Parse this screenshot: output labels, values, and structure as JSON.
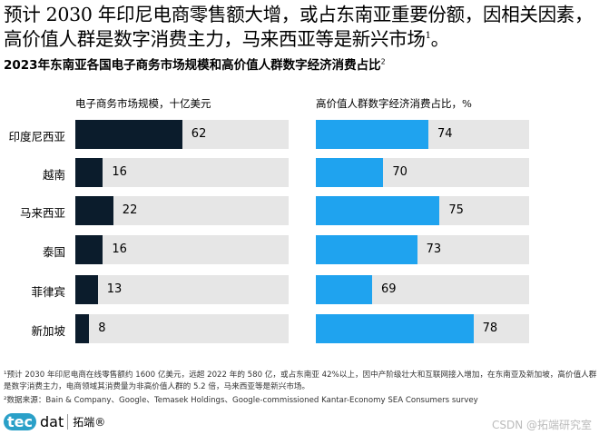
{
  "headline": "预计 2030 年印尼电商零售额大增，或占东南亚重要份额，因相关因素，高价值人群是数字消费主力，马来西亚等是新兴市场",
  "headline_sup": "1",
  "headline_end": "。",
  "chart_data": [
    {
      "type": "bar",
      "orientation": "horizontal",
      "title": "2023年东南亚各国电子商务市场规模和高价值人群数字经济消费占比",
      "title_sup": "2",
      "xlabel": "电子商务市场规模，十亿美元",
      "categories": [
        "印度尼西亚",
        "越南",
        "马来西亚",
        "泰国",
        "菲律宾",
        "新加坡"
      ],
      "values": [
        62,
        16,
        22,
        16,
        13,
        8
      ],
      "color": "#0b1c2c"
    },
    {
      "type": "bar",
      "orientation": "horizontal",
      "xlabel": "高价值人群数字经济消费占比，%",
      "categories": [
        "印度尼西亚",
        "越南",
        "马来西亚",
        "泰国",
        "菲律宾",
        "新加坡"
      ],
      "values": [
        74,
        70,
        75,
        73,
        69,
        78
      ],
      "color": "#1fa3ef"
    }
  ],
  "footnotes": [
    "¹预计 2030 年印尼电商在线零售额约 1600 亿美元，远超 2022 年的 580 亿，或占东南亚 42%以上，因中产阶级壮大和互联网接入增加，在东南亚及新加坡，高价值人群是数字消费主力，电商领域其消费量为非高价值人群的 5.2 倍，马来西亚等是新兴市场。",
    "²数据来源：Bain & Company、Google、Temasek Holdings、Google-commissioned Kantar-Economy SEA Consumers survey"
  ],
  "logo": {
    "tec": "tec",
    "dat": "dat",
    "cn": "拓端®"
  },
  "watermark": "CSDN @拓端研究室"
}
